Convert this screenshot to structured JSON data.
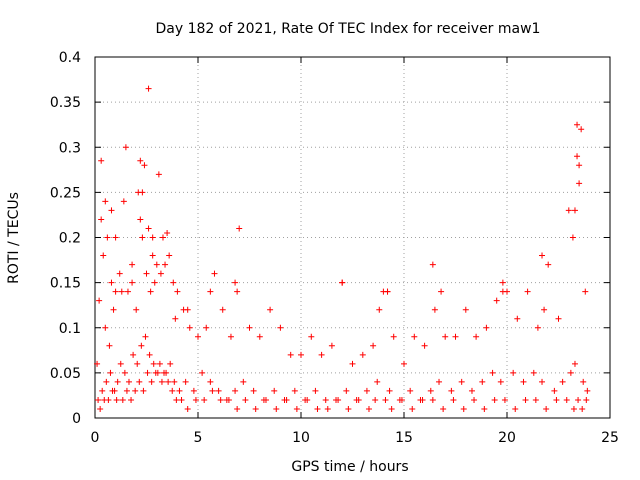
{
  "chart_data": {
    "type": "scatter",
    "title": "Day 182 of 2021, Rate Of TEC Index for receiver maw1",
    "xlabel": "GPS time / hours",
    "ylabel": "ROTI / TECUs",
    "xlim": [
      0,
      25
    ],
    "ylim": [
      0,
      0.4
    ],
    "xticks": [
      "0",
      "5",
      "10",
      "15",
      "20",
      "25"
    ],
    "yticks": [
      "0",
      "0.05",
      "0.1",
      "0.15",
      "0.2",
      "0.25",
      "0.3",
      "0.35",
      "0.4"
    ],
    "grid": true,
    "marker": "+",
    "series": [
      {
        "name": "ROTI",
        "color": "#ff0000",
        "x": [
          0.1,
          0.2,
          0.3,
          0.4,
          0.5,
          0.6,
          0.7,
          0.8,
          0.9,
          1.0,
          1.2,
          1.4,
          1.6,
          1.8,
          2.0,
          2.1,
          2.2,
          2.3,
          2.4,
          2.5,
          2.6,
          2.7,
          2.8,
          2.9,
          3.0,
          3.2,
          3.4,
          3.6,
          3.8,
          4.0,
          4.3,
          4.6,
          5.0,
          5.4,
          5.8,
          6.2,
          6.6,
          7.0,
          7.5,
          8.0,
          8.5,
          9.0,
          9.5,
          10.0,
          10.5,
          11.0,
          11.5,
          12.0,
          12.5,
          13.0,
          13.5,
          13.8,
          14.0,
          14.2,
          14.5,
          15.0,
          15.5,
          16.0,
          16.5,
          16.8,
          17.0,
          17.5,
          18.0,
          18.5,
          19.0,
          19.5,
          19.8,
          20.0,
          20.5,
          21.0,
          21.5,
          21.8,
          22.0,
          22.5,
          23.0,
          23.2,
          23.4,
          23.5,
          23.6,
          23.8,
          0.3,
          0.8,
          1.5,
          2.2,
          2.6,
          3.1,
          3.5,
          0.5,
          1.0,
          1.3,
          1.8,
          2.3,
          2.8,
          3.3,
          3.9,
          4.5,
          5.6,
          6.8,
          6.9,
          12.0,
          14.2,
          16.4,
          19.8,
          21.7,
          23.3,
          23.4,
          23.5,
          0.15,
          0.35,
          0.55,
          0.75,
          0.95,
          1.1,
          1.25,
          1.45,
          1.65,
          1.85,
          2.05,
          2.25,
          2.45,
          2.65,
          2.85,
          3.05,
          3.25,
          3.45,
          3.65,
          3.85,
          4.1,
          4.4,
          4.8,
          5.2,
          5.6,
          6.0,
          6.4,
          6.8,
          7.2,
          7.7,
          8.2,
          8.7,
          9.2,
          9.7,
          10.2,
          10.7,
          11.2,
          11.7,
          12.2,
          12.7,
          13.2,
          13.7,
          14.3,
          14.8,
          15.3,
          15.8,
          16.3,
          16.7,
          17.3,
          17.8,
          18.3,
          18.8,
          19.3,
          19.7,
          20.3,
          20.8,
          21.3,
          21.7,
          22.3,
          22.7,
          23.1,
          23.3,
          23.7,
          23.9,
          0.25,
          0.45,
          0.65,
          0.85,
          1.05,
          1.35,
          1.55,
          1.75,
          1.95,
          2.15,
          2.35,
          2.55,
          2.75,
          2.95,
          3.15,
          3.35,
          3.55,
          3.75,
          3.95,
          4.2,
          4.5,
          4.9,
          5.3,
          5.7,
          6.1,
          6.5,
          6.9,
          7.3,
          7.8,
          8.3,
          8.8,
          9.3,
          9.8,
          10.3,
          10.8,
          11.3,
          11.8,
          12.3,
          12.8,
          13.3,
          13.6,
          14.1,
          14.4,
          14.9,
          15.4,
          15.9,
          16.4,
          16.9,
          17.4,
          17.9,
          18.4,
          18.9,
          19.4,
          19.9,
          20.4,
          20.9,
          21.4,
          21.9,
          22.4,
          22.9,
          23.25,
          23.45,
          23.65,
          23.85
        ],
        "y": [
          0.06,
          0.13,
          0.22,
          0.18,
          0.1,
          0.2,
          0.08,
          0.15,
          0.12,
          0.14,
          0.16,
          0.24,
          0.14,
          0.17,
          0.12,
          0.25,
          0.22,
          0.2,
          0.28,
          0.16,
          0.21,
          0.14,
          0.18,
          0.15,
          0.17,
          0.16,
          0.17,
          0.18,
          0.15,
          0.14,
          0.12,
          0.1,
          0.09,
          0.1,
          0.16,
          0.12,
          0.09,
          0.21,
          0.1,
          0.09,
          0.12,
          0.1,
          0.07,
          0.07,
          0.09,
          0.07,
          0.08,
          0.15,
          0.06,
          0.07,
          0.08,
          0.12,
          0.14,
          0.14,
          0.09,
          0.06,
          0.09,
          0.08,
          0.12,
          0.14,
          0.09,
          0.09,
          0.12,
          0.09,
          0.1,
          0.13,
          0.15,
          0.14,
          0.11,
          0.14,
          0.1,
          0.12,
          0.17,
          0.11,
          0.23,
          0.2,
          0.29,
          0.26,
          0.32,
          0.14,
          0.285,
          0.23,
          0.3,
          0.285,
          0.365,
          0.27,
          0.205,
          0.24,
          0.2,
          0.14,
          0.15,
          0.25,
          0.2,
          0.2,
          0.11,
          0.12,
          0.14,
          0.15,
          0.14,
          0.15,
          0.14,
          0.17,
          0.14,
          0.18,
          0.23,
          0.325,
          0.28,
          0.02,
          0.03,
          0.04,
          0.05,
          0.03,
          0.04,
          0.06,
          0.05,
          0.04,
          0.07,
          0.06,
          0.08,
          0.09,
          0.07,
          0.06,
          0.05,
          0.04,
          0.05,
          0.06,
          0.04,
          0.03,
          0.04,
          0.03,
          0.05,
          0.04,
          0.03,
          0.02,
          0.03,
          0.04,
          0.03,
          0.02,
          0.03,
          0.02,
          0.03,
          0.02,
          0.03,
          0.02,
          0.02,
          0.03,
          0.02,
          0.03,
          0.04,
          0.03,
          0.02,
          0.03,
          0.02,
          0.03,
          0.04,
          0.03,
          0.04,
          0.03,
          0.04,
          0.05,
          0.04,
          0.05,
          0.04,
          0.05,
          0.04,
          0.03,
          0.04,
          0.05,
          0.06,
          0.04,
          0.03,
          0.01,
          0.02,
          0.02,
          0.03,
          0.02,
          0.02,
          0.03,
          0.02,
          0.03,
          0.04,
          0.03,
          0.05,
          0.04,
          0.05,
          0.06,
          0.05,
          0.04,
          0.03,
          0.02,
          0.02,
          0.01,
          0.02,
          0.02,
          0.03,
          0.02,
          0.02,
          0.01,
          0.02,
          0.01,
          0.02,
          0.01,
          0.02,
          0.01,
          0.02,
          0.01,
          0.01,
          0.02,
          0.01,
          0.02,
          0.01,
          0.02,
          0.02,
          0.01,
          0.02,
          0.01,
          0.02,
          0.02,
          0.01,
          0.02,
          0.01,
          0.02,
          0.01,
          0.02,
          0.02,
          0.01,
          0.02,
          0.02,
          0.01,
          0.02,
          0.02,
          0.01,
          0.02,
          0.01,
          0.02
        ]
      }
    ]
  }
}
